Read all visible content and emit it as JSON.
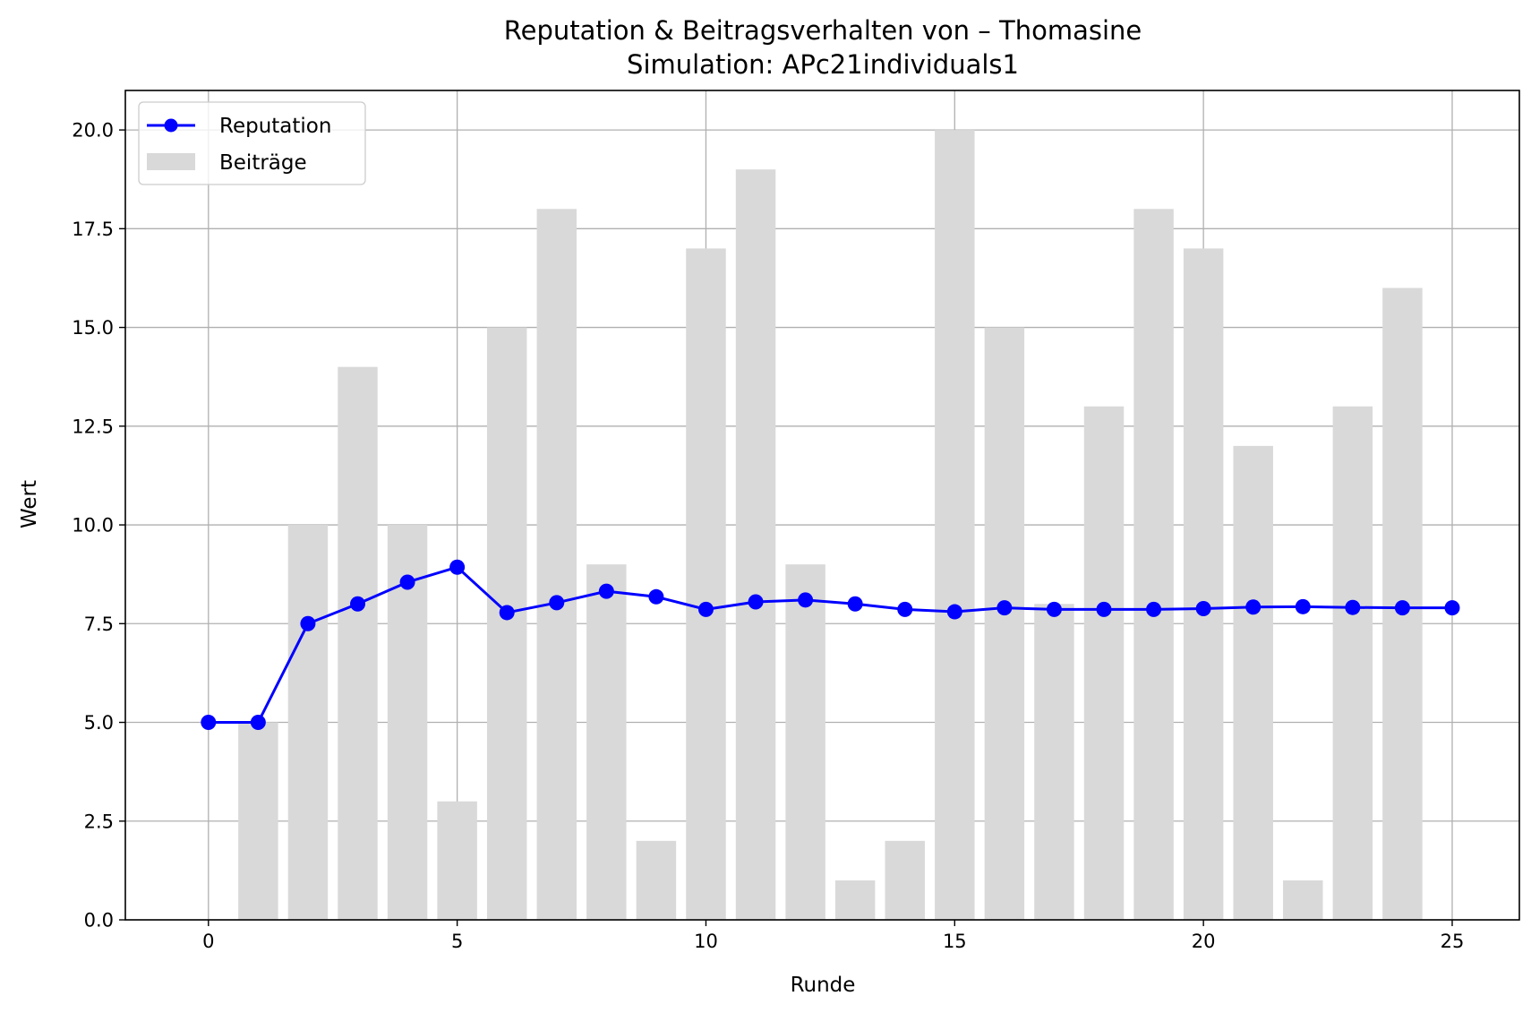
{
  "chart_data": {
    "type": "bar+line",
    "title": "Reputation & Beitragsverhalten von – Thomasine",
    "subtitle": "Simulation: APc21individuals1",
    "xlabel": "Runde",
    "ylabel": "Wert",
    "xlim": [
      -1.67,
      26.35
    ],
    "ylim": [
      0,
      21
    ],
    "xticks": [
      0,
      5,
      10,
      15,
      20,
      25
    ],
    "xtick_labels": [
      "0",
      "5",
      "10",
      "15",
      "20",
      "25"
    ],
    "yticks": [
      0,
      2.5,
      5,
      7.5,
      10,
      12.5,
      15,
      17.5,
      20
    ],
    "ytick_labels": [
      "0.0",
      "2.5",
      "5.0",
      "7.5",
      "10.0",
      "12.5",
      "15.0",
      "17.5",
      "20.0"
    ],
    "grid": true,
    "legend_position": "top-left",
    "series": [
      {
        "name": "Reputation",
        "type": "line",
        "marker": "circle",
        "color": "#0000ff",
        "x": [
          0,
          1,
          2,
          3,
          4,
          5,
          6,
          7,
          8,
          9,
          10,
          11,
          12,
          13,
          14,
          15,
          16,
          17,
          18,
          19,
          20,
          21,
          22,
          23,
          24,
          25
        ],
        "values": [
          5.0,
          5.0,
          7.5,
          8.0,
          8.55,
          8.93,
          7.78,
          8.03,
          8.32,
          8.18,
          7.86,
          8.05,
          8.1,
          8.0,
          7.86,
          7.8,
          7.9,
          7.86,
          7.86,
          7.86,
          7.88,
          7.92,
          7.93,
          7.91,
          7.9,
          7.9
        ]
      },
      {
        "name": "Beiträge",
        "type": "bar",
        "color": "#d9d9d9",
        "x": [
          1,
          2,
          3,
          4,
          5,
          6,
          7,
          8,
          9,
          10,
          11,
          12,
          13,
          14,
          15,
          16,
          17,
          18,
          19,
          20,
          21,
          22,
          23,
          24
        ],
        "values": [
          5,
          10,
          14,
          10,
          3,
          15,
          18,
          9,
          2,
          17,
          19,
          9,
          1,
          2,
          20,
          15,
          8,
          13,
          18,
          17,
          12,
          1,
          13,
          16
        ]
      }
    ]
  }
}
